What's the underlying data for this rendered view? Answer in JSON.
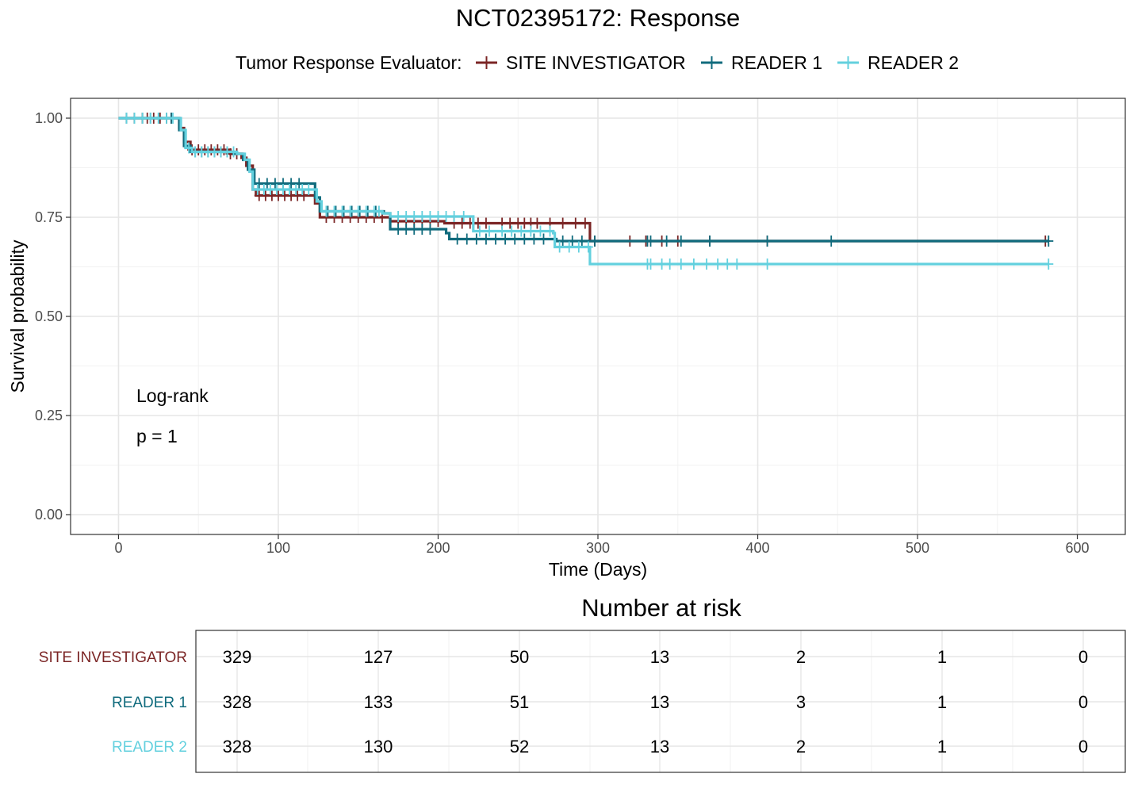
{
  "title": "NCT02395172: Response",
  "legend": {
    "title": "Tumor Response Evaluator:",
    "placement": "top"
  },
  "chart_data": {
    "type": "line",
    "step": true,
    "xlabel": "Time (Days)",
    "ylabel": "Survival probability",
    "xlim": [
      -30,
      630
    ],
    "ylim": [
      -0.05,
      1.05
    ],
    "x_ticks": [
      "0",
      "100",
      "200",
      "300",
      "400",
      "500",
      "600"
    ],
    "y_ticks": [
      "0.00",
      "0.25",
      "0.50",
      "0.75",
      "1.00"
    ],
    "grid": true,
    "annotations": [
      "Log-rank",
      "p = 1"
    ],
    "series": [
      {
        "name": "SITE INVESTIGATOR",
        "color": "#7b2525",
        "steps": [
          [
            0,
            1.0
          ],
          [
            35,
            1.0
          ],
          [
            38,
            0.975
          ],
          [
            41,
            0.94
          ],
          [
            45,
            0.92
          ],
          [
            70,
            0.91
          ],
          [
            77,
            0.9
          ],
          [
            80,
            0.88
          ],
          [
            84,
            0.82
          ],
          [
            86,
            0.805
          ],
          [
            120,
            0.805
          ],
          [
            123,
            0.785
          ],
          [
            126,
            0.75
          ],
          [
            170,
            0.74
          ],
          [
            204,
            0.735
          ],
          [
            295,
            0.735
          ],
          [
            295,
            0.69
          ],
          [
            582,
            0.69
          ]
        ],
        "censors": [
          5,
          10,
          15,
          18,
          22,
          26,
          30,
          33,
          46,
          50,
          54,
          58,
          62,
          66,
          70,
          74,
          88,
          92,
          96,
          100,
          104,
          108,
          112,
          116,
          130,
          135,
          140,
          145,
          150,
          155,
          160,
          165,
          175,
          180,
          185,
          190,
          195,
          200,
          210,
          215,
          220,
          225,
          230,
          240,
          245,
          250,
          254,
          258,
          262,
          270,
          278,
          286,
          292,
          298,
          320,
          330,
          340,
          350,
          370,
          406,
          580
        ]
      },
      {
        "name": "READER 1",
        "color": "#106b7d",
        "steps": [
          [
            0,
            1.0
          ],
          [
            35,
            1.0
          ],
          [
            38,
            0.97
          ],
          [
            41,
            0.93
          ],
          [
            45,
            0.915
          ],
          [
            72,
            0.91
          ],
          [
            78,
            0.895
          ],
          [
            81,
            0.87
          ],
          [
            85,
            0.835
          ],
          [
            120,
            0.835
          ],
          [
            123,
            0.8
          ],
          [
            126,
            0.765
          ],
          [
            166,
            0.76
          ],
          [
            170,
            0.72
          ],
          [
            205,
            0.71
          ],
          [
            207,
            0.695
          ],
          [
            272,
            0.695
          ],
          [
            274,
            0.69
          ],
          [
            582,
            0.69
          ]
        ],
        "censors": [
          5,
          10,
          15,
          20,
          25,
          30,
          33,
          48,
          52,
          56,
          60,
          64,
          68,
          88,
          93,
          98,
          103,
          108,
          113,
          131,
          136,
          141,
          146,
          151,
          156,
          161,
          175,
          180,
          185,
          190,
          195,
          212,
          218,
          224,
          230,
          236,
          242,
          248,
          254,
          260,
          266,
          278,
          284,
          290,
          298,
          331,
          333,
          343,
          352,
          370,
          406,
          446,
          582
        ]
      },
      {
        "name": "READER 2",
        "color": "#63d0de",
        "steps": [
          [
            0,
            1.0
          ],
          [
            36,
            1.0
          ],
          [
            39,
            0.97
          ],
          [
            42,
            0.925
          ],
          [
            46,
            0.915
          ],
          [
            74,
            0.91
          ],
          [
            79,
            0.895
          ],
          [
            82,
            0.865
          ],
          [
            84,
            0.82
          ],
          [
            121,
            0.82
          ],
          [
            124,
            0.79
          ],
          [
            127,
            0.765
          ],
          [
            165,
            0.76
          ],
          [
            170,
            0.752
          ],
          [
            220,
            0.752
          ],
          [
            222,
            0.715
          ],
          [
            272,
            0.71
          ],
          [
            273,
            0.675
          ],
          [
            295,
            0.675
          ],
          [
            295,
            0.632
          ],
          [
            582,
            0.632
          ]
        ],
        "censors": [
          5,
          10,
          15,
          20,
          25,
          30,
          34,
          44,
          48,
          52,
          56,
          60,
          64,
          68,
          72,
          87,
          91,
          95,
          99,
          103,
          107,
          111,
          115,
          119,
          130,
          135,
          140,
          145,
          150,
          155,
          160,
          163,
          175,
          180,
          185,
          190,
          195,
          200,
          205,
          210,
          216,
          226,
          232,
          240,
          246,
          252,
          258,
          264,
          270,
          276,
          282,
          288,
          294,
          331,
          333,
          340,
          345,
          352,
          360,
          368,
          375,
          381,
          387,
          406,
          582
        ]
      }
    ]
  },
  "risk_table": {
    "title": "Number at risk",
    "columns": [
      "0",
      "100",
      "200",
      "300",
      "400",
      "500",
      "600"
    ],
    "rows": [
      {
        "label": "SITE INVESTIGATOR",
        "color": "#7b2525",
        "values": [
          "329",
          "127",
          "50",
          "13",
          "2",
          "1",
          "0"
        ]
      },
      {
        "label": "READER 1",
        "color": "#106b7d",
        "values": [
          "328",
          "133",
          "51",
          "13",
          "3",
          "1",
          "0"
        ]
      },
      {
        "label": "READER 2",
        "color": "#63d0de",
        "values": [
          "328",
          "130",
          "52",
          "13",
          "2",
          "1",
          "0"
        ]
      }
    ]
  }
}
